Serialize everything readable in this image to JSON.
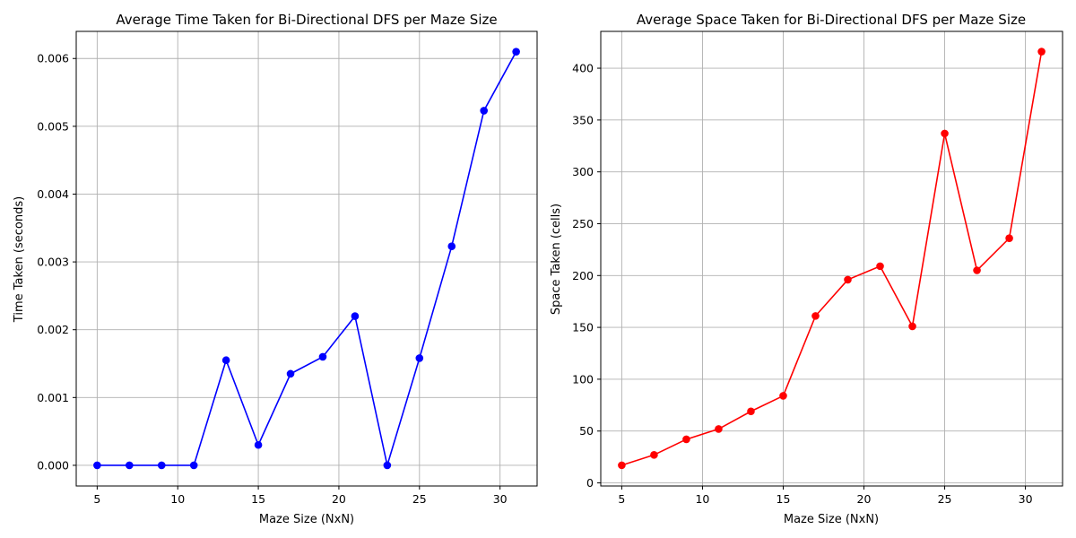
{
  "chart_data": [
    {
      "type": "line",
      "title": "Average Time Taken for Bi-Directional DFS per Maze Size",
      "xlabel": "Maze Size (NxN)",
      "ylabel": "Time Taken (seconds)",
      "xlim": [
        3.7,
        32.3
      ],
      "ylim": [
        -0.000305,
        0.0064
      ],
      "xticks": [
        5,
        10,
        15,
        20,
        25,
        30
      ],
      "xtick_labels": [
        "5",
        "10",
        "15",
        "20",
        "25",
        "30"
      ],
      "yticks": [
        0,
        0.001,
        0.002,
        0.003,
        0.004,
        0.005,
        0.006
      ],
      "ytick_labels": [
        "0.000",
        "0.001",
        "0.002",
        "0.003",
        "0.004",
        "0.005",
        "0.006"
      ],
      "grid": true,
      "marker": "circle",
      "color": "#0000ff",
      "x": [
        5,
        7,
        9,
        11,
        13,
        15,
        17,
        19,
        21,
        23,
        25,
        27,
        29,
        31
      ],
      "y": [
        0.0,
        0.0,
        0.0,
        0.0,
        0.00155,
        0.0003,
        0.00135,
        0.0016,
        0.0022,
        0.0,
        0.00158,
        0.00323,
        0.00523,
        0.0061
      ]
    },
    {
      "type": "line",
      "title": "Average Space Taken for Bi-Directional DFS per Maze Size",
      "xlabel": "Maze Size (NxN)",
      "ylabel": "Space Taken (cells)",
      "xlim": [
        3.7,
        32.3
      ],
      "ylim": [
        -3,
        435.5
      ],
      "xticks": [
        5,
        10,
        15,
        20,
        25,
        30
      ],
      "xtick_labels": [
        "5",
        "10",
        "15",
        "20",
        "25",
        "30"
      ],
      "yticks": [
        0,
        50,
        100,
        150,
        200,
        250,
        300,
        350,
        400
      ],
      "ytick_labels": [
        "0",
        "50",
        "100",
        "150",
        "200",
        "250",
        "300",
        "350",
        "400"
      ],
      "grid": true,
      "marker": "circle",
      "color": "#ff0000",
      "x": [
        5,
        7,
        9,
        11,
        13,
        15,
        17,
        19,
        21,
        23,
        25,
        27,
        29,
        31
      ],
      "y": [
        17,
        27,
        42,
        52,
        69,
        84,
        161,
        196,
        209,
        151,
        337,
        205,
        236,
        416
      ]
    }
  ]
}
